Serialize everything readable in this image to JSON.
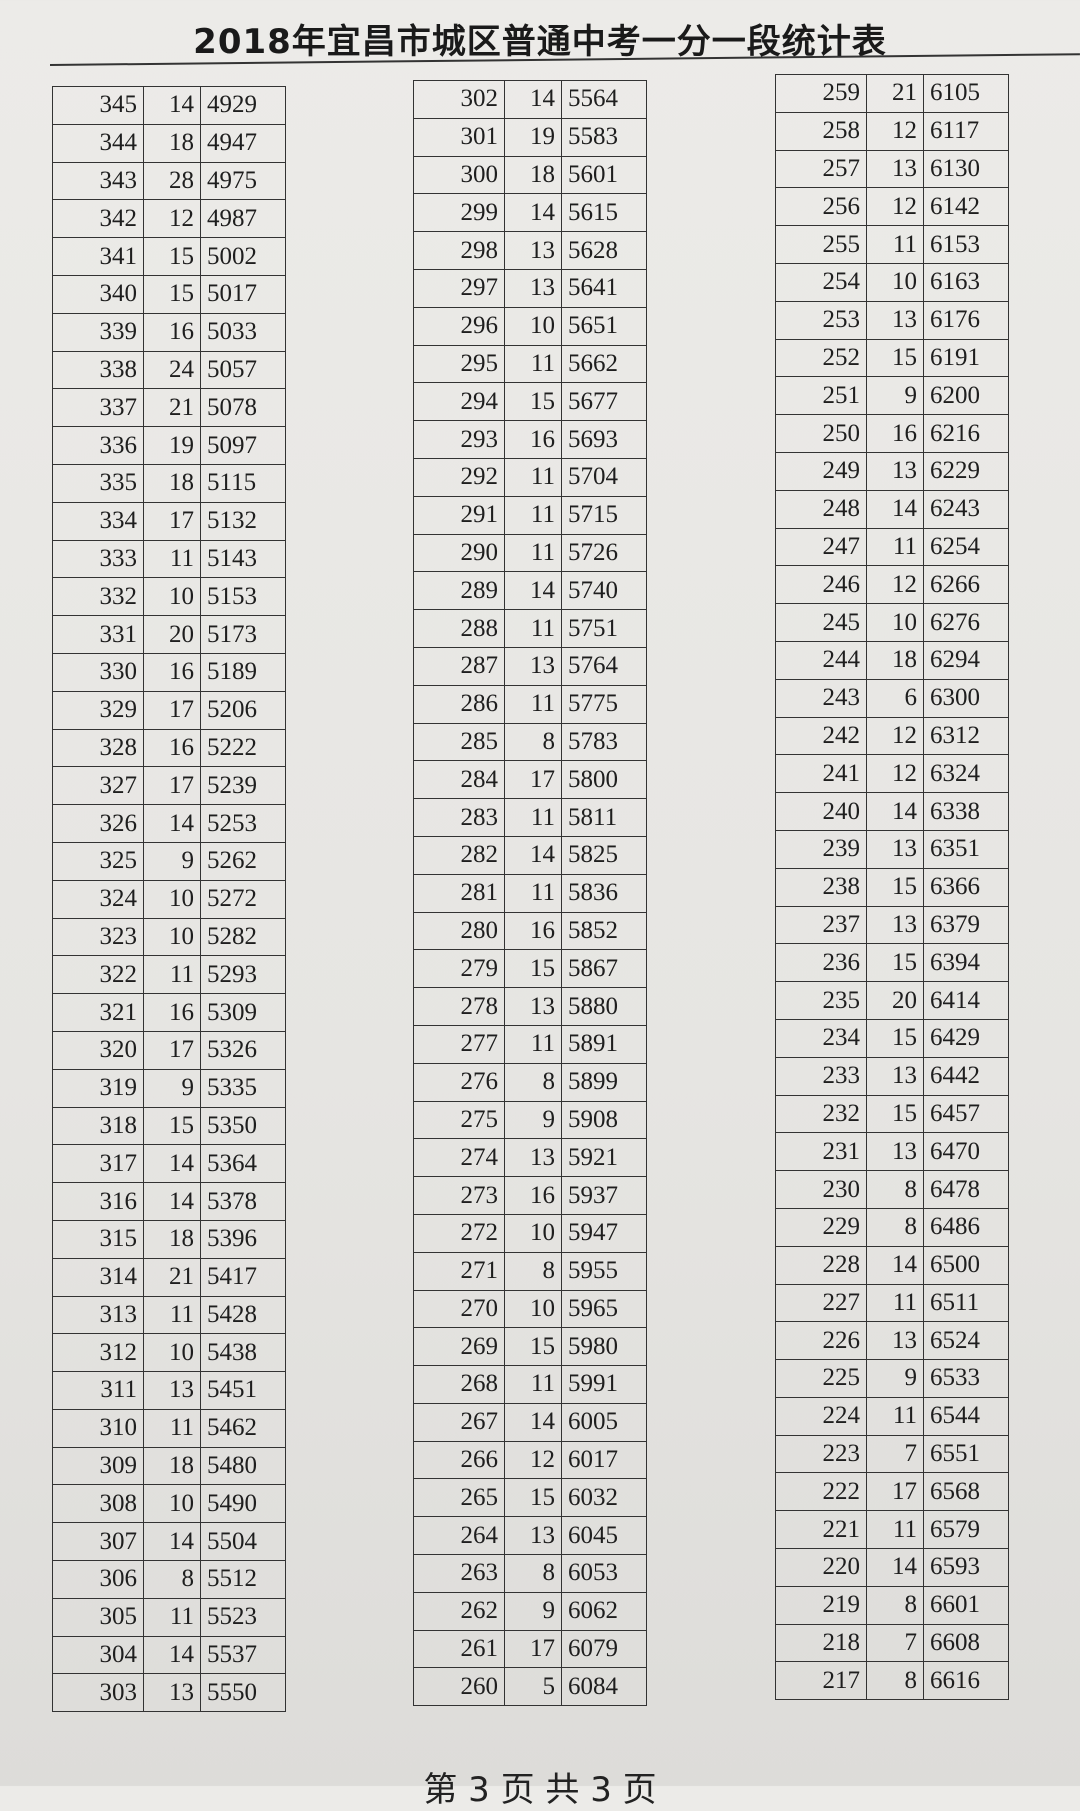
{
  "title": "2018年宜昌市城区普通中考一分一段统计表",
  "footer": "第 3 页 共 3 页",
  "tables": [
    {
      "rows": [
        [
          "345",
          "14",
          "4929"
        ],
        [
          "344",
          "18",
          "4947"
        ],
        [
          "343",
          "28",
          "4975"
        ],
        [
          "342",
          "12",
          "4987"
        ],
        [
          "341",
          "15",
          "5002"
        ],
        [
          "340",
          "15",
          "5017"
        ],
        [
          "339",
          "16",
          "5033"
        ],
        [
          "338",
          "24",
          "5057"
        ],
        [
          "337",
          "21",
          "5078"
        ],
        [
          "336",
          "19",
          "5097"
        ],
        [
          "335",
          "18",
          "5115"
        ],
        [
          "334",
          "17",
          "5132"
        ],
        [
          "333",
          "11",
          "5143"
        ],
        [
          "332",
          "10",
          "5153"
        ],
        [
          "331",
          "20",
          "5173"
        ],
        [
          "330",
          "16",
          "5189"
        ],
        [
          "329",
          "17",
          "5206"
        ],
        [
          "328",
          "16",
          "5222"
        ],
        [
          "327",
          "17",
          "5239"
        ],
        [
          "326",
          "14",
          "5253"
        ],
        [
          "325",
          "9",
          "5262"
        ],
        [
          "324",
          "10",
          "5272"
        ],
        [
          "323",
          "10",
          "5282"
        ],
        [
          "322",
          "11",
          "5293"
        ],
        [
          "321",
          "16",
          "5309"
        ],
        [
          "320",
          "17",
          "5326"
        ],
        [
          "319",
          "9",
          "5335"
        ],
        [
          "318",
          "15",
          "5350"
        ],
        [
          "317",
          "14",
          "5364"
        ],
        [
          "316",
          "14",
          "5378"
        ],
        [
          "315",
          "18",
          "5396"
        ],
        [
          "314",
          "21",
          "5417"
        ],
        [
          "313",
          "11",
          "5428"
        ],
        [
          "312",
          "10",
          "5438"
        ],
        [
          "311",
          "13",
          "5451"
        ],
        [
          "310",
          "11",
          "5462"
        ],
        [
          "309",
          "18",
          "5480"
        ],
        [
          "308",
          "10",
          "5490"
        ],
        [
          "307",
          "14",
          "5504"
        ],
        [
          "306",
          "8",
          "5512"
        ],
        [
          "305",
          "11",
          "5523"
        ],
        [
          "304",
          "14",
          "5537"
        ],
        [
          "303",
          "13",
          "5550"
        ]
      ]
    },
    {
      "rows": [
        [
          "302",
          "14",
          "5564"
        ],
        [
          "301",
          "19",
          "5583"
        ],
        [
          "300",
          "18",
          "5601"
        ],
        [
          "299",
          "14",
          "5615"
        ],
        [
          "298",
          "13",
          "5628"
        ],
        [
          "297",
          "13",
          "5641"
        ],
        [
          "296",
          "10",
          "5651"
        ],
        [
          "295",
          "11",
          "5662"
        ],
        [
          "294",
          "15",
          "5677"
        ],
        [
          "293",
          "16",
          "5693"
        ],
        [
          "292",
          "11",
          "5704"
        ],
        [
          "291",
          "11",
          "5715"
        ],
        [
          "290",
          "11",
          "5726"
        ],
        [
          "289",
          "14",
          "5740"
        ],
        [
          "288",
          "11",
          "5751"
        ],
        [
          "287",
          "13",
          "5764"
        ],
        [
          "286",
          "11",
          "5775"
        ],
        [
          "285",
          "8",
          "5783"
        ],
        [
          "284",
          "17",
          "5800"
        ],
        [
          "283",
          "11",
          "5811"
        ],
        [
          "282",
          "14",
          "5825"
        ],
        [
          "281",
          "11",
          "5836"
        ],
        [
          "280",
          "16",
          "5852"
        ],
        [
          "279",
          "15",
          "5867"
        ],
        [
          "278",
          "13",
          "5880"
        ],
        [
          "277",
          "11",
          "5891"
        ],
        [
          "276",
          "8",
          "5899"
        ],
        [
          "275",
          "9",
          "5908"
        ],
        [
          "274",
          "13",
          "5921"
        ],
        [
          "273",
          "16",
          "5937"
        ],
        [
          "272",
          "10",
          "5947"
        ],
        [
          "271",
          "8",
          "5955"
        ],
        [
          "270",
          "10",
          "5965"
        ],
        [
          "269",
          "15",
          "5980"
        ],
        [
          "268",
          "11",
          "5991"
        ],
        [
          "267",
          "14",
          "6005"
        ],
        [
          "266",
          "12",
          "6017"
        ],
        [
          "265",
          "15",
          "6032"
        ],
        [
          "264",
          "13",
          "6045"
        ],
        [
          "263",
          "8",
          "6053"
        ],
        [
          "262",
          "9",
          "6062"
        ],
        [
          "261",
          "17",
          "6079"
        ],
        [
          "260",
          "5",
          "6084"
        ]
      ]
    },
    {
      "rows": [
        [
          "259",
          "21",
          "6105"
        ],
        [
          "258",
          "12",
          "6117"
        ],
        [
          "257",
          "13",
          "6130"
        ],
        [
          "256",
          "12",
          "6142"
        ],
        [
          "255",
          "11",
          "6153"
        ],
        [
          "254",
          "10",
          "6163"
        ],
        [
          "253",
          "13",
          "6176"
        ],
        [
          "252",
          "15",
          "6191"
        ],
        [
          "251",
          "9",
          "6200"
        ],
        [
          "250",
          "16",
          "6216"
        ],
        [
          "249",
          "13",
          "6229"
        ],
        [
          "248",
          "14",
          "6243"
        ],
        [
          "247",
          "11",
          "6254"
        ],
        [
          "246",
          "12",
          "6266"
        ],
        [
          "245",
          "10",
          "6276"
        ],
        [
          "244",
          "18",
          "6294"
        ],
        [
          "243",
          "6",
          "6300"
        ],
        [
          "242",
          "12",
          "6312"
        ],
        [
          "241",
          "12",
          "6324"
        ],
        [
          "240",
          "14",
          "6338"
        ],
        [
          "239",
          "13",
          "6351"
        ],
        [
          "238",
          "15",
          "6366"
        ],
        [
          "237",
          "13",
          "6379"
        ],
        [
          "236",
          "15",
          "6394"
        ],
        [
          "235",
          "20",
          "6414"
        ],
        [
          "234",
          "15",
          "6429"
        ],
        [
          "233",
          "13",
          "6442"
        ],
        [
          "232",
          "15",
          "6457"
        ],
        [
          "231",
          "13",
          "6470"
        ],
        [
          "230",
          "8",
          "6478"
        ],
        [
          "229",
          "8",
          "6486"
        ],
        [
          "228",
          "14",
          "6500"
        ],
        [
          "227",
          "11",
          "6511"
        ],
        [
          "226",
          "13",
          "6524"
        ],
        [
          "225",
          "9",
          "6533"
        ],
        [
          "224",
          "11",
          "6544"
        ],
        [
          "223",
          "7",
          "6551"
        ],
        [
          "222",
          "17",
          "6568"
        ],
        [
          "221",
          "11",
          "6579"
        ],
        [
          "220",
          "14",
          "6593"
        ],
        [
          "219",
          "8",
          "6601"
        ],
        [
          "218",
          "7",
          "6608"
        ],
        [
          "217",
          "8",
          "6616"
        ]
      ]
    }
  ]
}
